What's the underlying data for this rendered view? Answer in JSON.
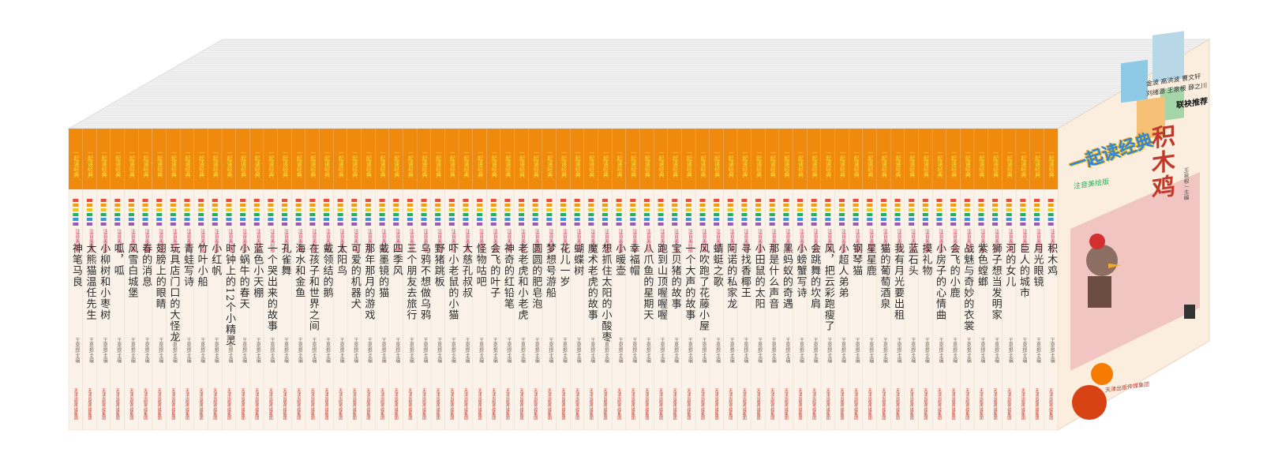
{
  "series_name": "一起读经典",
  "edition": "注音美绘版",
  "editor": "王泉根/主编",
  "publisher": "天津出版传媒集团",
  "cover": {
    "title": "积木鸡",
    "logo": "一起读经典",
    "logo_sub": "注音美绘版",
    "author_line": "王泉根 / 主编",
    "recommend_label": "联袂推荐",
    "recommenders": [
      "金波 高洪波 曹文轩",
      "刘绪源 王泉根 薛之川"
    ],
    "publisher": "天津出版传媒集团"
  },
  "spines": [
    "神笔马良",
    "大熊猫温任先生",
    "小柳树和小枣树",
    "呱，呱",
    "风雪白城堡",
    "春的消息",
    "翅膀上的眼睛",
    "玩具店门口的大怪龙",
    "青蛙写诗",
    "竹叶小船",
    "小红帆",
    "时钟上的12个小精灵",
    "小蜗牛的春天",
    "蓝色小天棚",
    "一个哭出来的故事",
    "孔雀舞",
    "海水和金鱼",
    "在孩子和世界之间",
    "戴领结的鹅",
    "太阳鸟",
    "可爱的机器犬",
    "那年那月的游戏",
    "戴墨镜的猫",
    "四季风",
    "三个朋友去旅行",
    "乌鸦不想做乌鸦",
    "野猪跳板",
    "吓小老鼠的小猫",
    "大慈孔叔叔",
    "怪物咕吧",
    "会飞的叶子",
    "神奇的红铅笔",
    "老老虎和小老虎",
    "圆圆的肥皂泡",
    "梦想号游船",
    "花儿一岁",
    "蝴蝶树",
    "魔术老虎的故事",
    "想抓住太阳的小酸枣",
    "小暖壶",
    "幸福帽",
    "八爪鱼的星期天",
    "跑到山顶喔喔喔",
    "宝贝猪的故事",
    "一个大声的故事",
    "风吹跑了花藤小屋",
    "蜻蜓之歌",
    "阿诺的私家龙",
    "寻找香椰王",
    "小田鼠的太阳",
    "那是什么声音",
    "黑蚂蚁的奇遇",
    "小螃蟹写诗",
    "会跳舞的坎肩",
    "风，把云彩跑瘦了",
    "小超人弟弟",
    "钢琴猫",
    "星星鹿",
    "猫的葡萄酒泉",
    "我有月光要出租",
    "蓝石头",
    "摸礼物",
    "小房子的心情曲",
    "会飞的小鹿",
    "战魅与奇妙的衣裳",
    "紫色螳螂",
    "狮子想当发明家",
    "河的女儿",
    "巨人的城市",
    "月光眼镜",
    "积木鸡"
  ]
}
